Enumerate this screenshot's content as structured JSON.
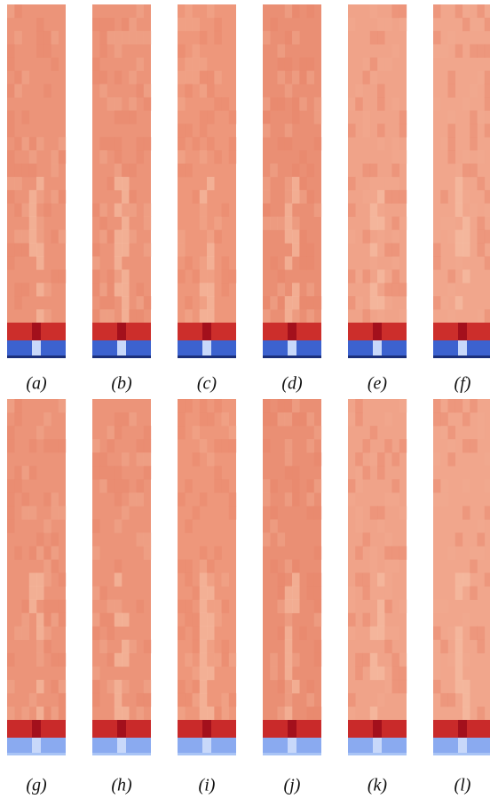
{
  "figure": {
    "panels": [
      {
        "label": "(a)"
      },
      {
        "label": "(b)"
      },
      {
        "label": "(c)"
      },
      {
        "label": "(d)"
      },
      {
        "label": "(e)"
      },
      {
        "label": "(f)"
      },
      {
        "label": "(g)"
      },
      {
        "label": "(h)"
      },
      {
        "label": "(i)"
      },
      {
        "label": "(j)"
      },
      {
        "label": "(k)"
      },
      {
        "label": "(l)"
      }
    ]
  }
}
